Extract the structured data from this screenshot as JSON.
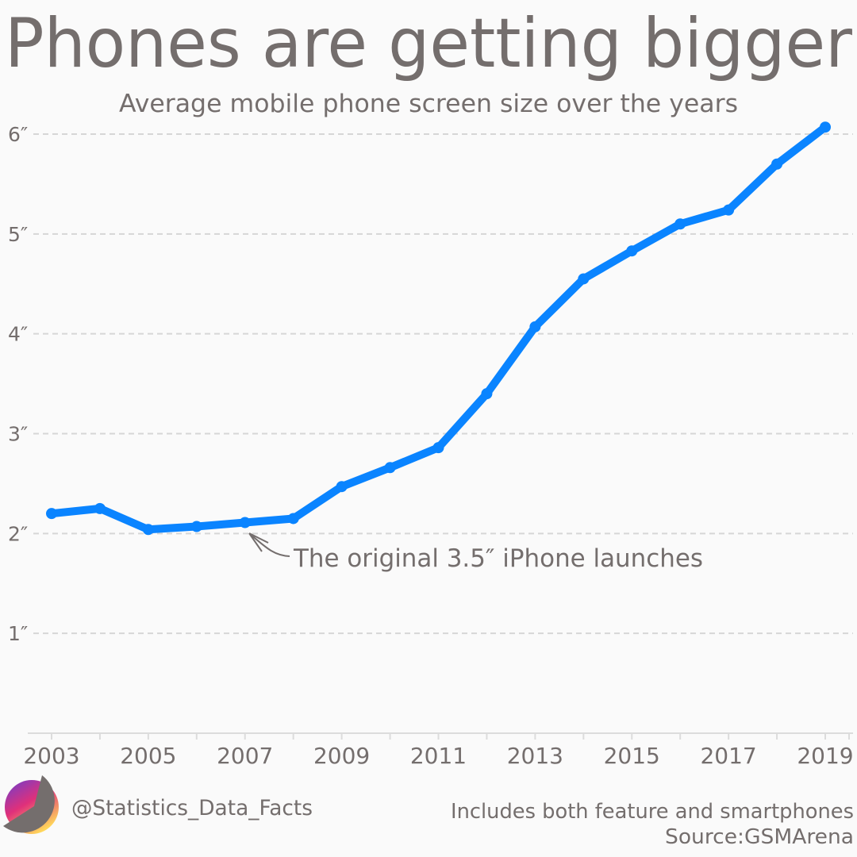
{
  "chart_data": {
    "type": "line",
    "title": "Phones are getting bigger",
    "subtitle": "Average mobile phone screen size over the years",
    "x": [
      2003,
      2004,
      2005,
      2006,
      2007,
      2008,
      2009,
      2010,
      2011,
      2012,
      2013,
      2014,
      2015,
      2016,
      2017,
      2018,
      2019
    ],
    "values": [
      2.2,
      2.25,
      2.04,
      2.07,
      2.11,
      2.15,
      2.47,
      2.66,
      2.86,
      3.4,
      4.07,
      4.55,
      4.83,
      5.1,
      5.24,
      5.7,
      6.07
    ],
    "xlim": [
      2003,
      2019
    ],
    "ylim": [
      0,
      6
    ],
    "x_tick_labels": [
      "2003",
      "2005",
      "2007",
      "2009",
      "2011",
      "2013",
      "2015",
      "2017",
      "2019"
    ],
    "y_tick_labels": [
      "1″",
      "2″",
      "3″",
      "4″",
      "5″",
      "6″"
    ],
    "grid": "horizontal dashed",
    "line_color": "#0a84ff",
    "annotation": {
      "text": "The original 3.5″ iPhone launches",
      "x": 2007
    },
    "footnote": "Includes both feature and smartphones",
    "source": "Source:GSMArena"
  },
  "branding": {
    "handle": "@Statistics_Data_Facts"
  },
  "colors": {
    "text": "#746e6d",
    "grid": "#d6d6d6",
    "background": "#fafafa"
  }
}
